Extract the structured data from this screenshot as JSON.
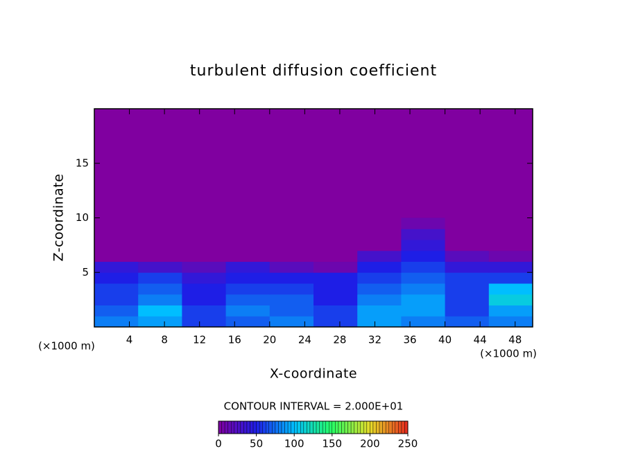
{
  "chart_data": {
    "type": "contour",
    "title": "turbulent diffusion coefficient",
    "xlabel": "X-coordinate",
    "ylabel": "Z-coordinate",
    "x_unit_label": "(×1000 m)",
    "x_unit_label_right": "(×1000 m)",
    "annotation": "CONTOUR INTERVAL = 2.000E+01",
    "xlim": [
      0,
      50
    ],
    "ylim": [
      0,
      20
    ],
    "xticks": [
      4,
      8,
      12,
      16,
      20,
      24,
      28,
      32,
      36,
      40,
      44,
      48
    ],
    "yticks": [
      5,
      10,
      15
    ],
    "clim": [
      0,
      250
    ],
    "cticks": [
      0,
      50,
      100,
      150,
      200,
      250
    ],
    "x": [
      2.5,
      7.5,
      12.5,
      17.5,
      22.5,
      27.5,
      32.5,
      37.5,
      42.5,
      47.5
    ],
    "y": [
      0.5,
      1.5,
      2.5,
      3.5,
      4.5,
      5.5,
      6.5,
      7.5,
      8.5,
      9.5
    ],
    "z": [
      [
        80,
        90,
        60,
        70,
        80,
        60,
        90,
        80,
        70,
        80
      ],
      [
        70,
        100,
        60,
        80,
        70,
        60,
        90,
        90,
        60,
        90
      ],
      [
        60,
        80,
        50,
        70,
        70,
        50,
        80,
        90,
        60,
        110
      ],
      [
        60,
        70,
        50,
        60,
        60,
        50,
        70,
        80,
        60,
        100
      ],
      [
        50,
        60,
        40,
        50,
        50,
        50,
        60,
        70,
        60,
        60
      ],
      [
        40,
        30,
        20,
        40,
        20,
        10,
        50,
        60,
        40,
        40
      ],
      [
        0,
        0,
        0,
        0,
        0,
        0,
        30,
        50,
        20,
        10
      ],
      [
        0,
        0,
        0,
        0,
        0,
        0,
        0,
        40,
        0,
        0
      ],
      [
        0,
        0,
        0,
        0,
        0,
        0,
        0,
        30,
        0,
        0
      ],
      [
        0,
        0,
        0,
        0,
        0,
        0,
        0,
        10,
        0,
        0
      ]
    ]
  }
}
